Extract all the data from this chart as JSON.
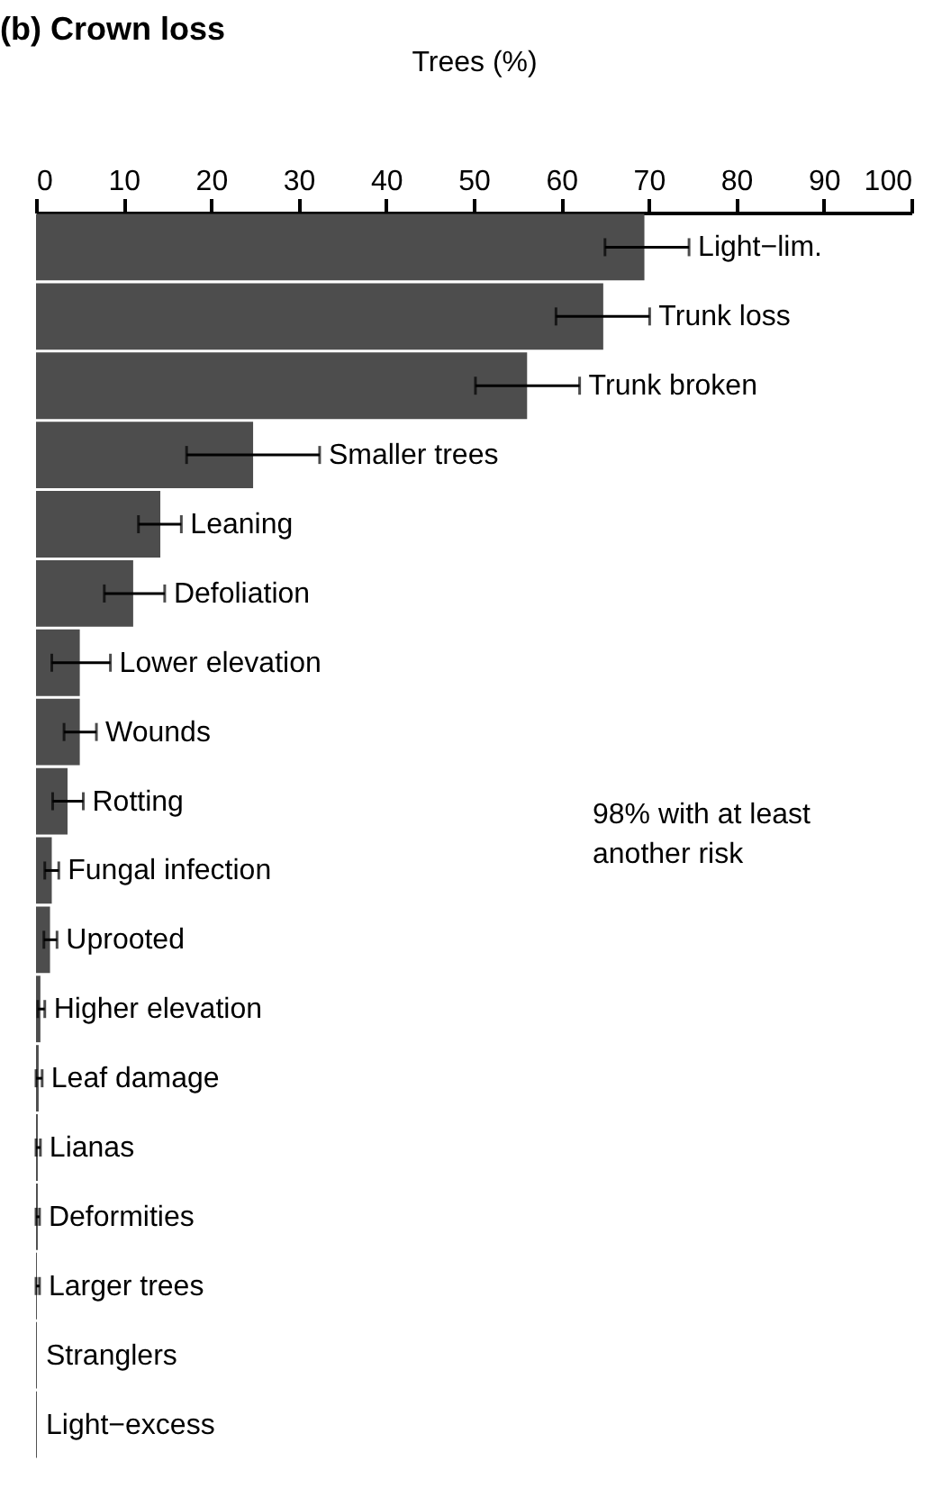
{
  "chart_data": {
    "type": "bar",
    "orientation": "horizontal",
    "title": "(b) Crown loss",
    "xlabel": "Trees (%)",
    "categories": [
      "Light−lim.",
      "Trunk loss",
      "Trunk broken",
      "Smaller trees",
      "Leaning",
      "Defoliation",
      "Lower elevation",
      "Wounds",
      "Rotting",
      "Fungal infection",
      "Uprooted",
      "Higher elevation",
      "Leaf damage",
      "Lianas",
      "Deformities",
      "Larger trees",
      "Stranglers",
      "Light−excess"
    ],
    "values": [
      69.5,
      64.8,
      56.1,
      24.8,
      14.2,
      11.1,
      5.0,
      5.0,
      3.6,
      1.8,
      1.6,
      0.5,
      0.3,
      0.2,
      0.2,
      0.1,
      0.1,
      0.1
    ],
    "errors": [
      [
        65,
        74.6
      ],
      [
        59.4,
        70.1
      ],
      [
        50.2,
        62.1
      ],
      [
        17.2,
        32.4
      ],
      [
        11.7,
        16.6
      ],
      [
        7.8,
        14.7
      ],
      [
        1.8,
        8.5
      ],
      [
        3.2,
        6.9
      ],
      [
        1.9,
        5.4
      ],
      [
        1.0,
        2.6
      ],
      [
        0.9,
        2.4
      ],
      [
        0.2,
        1.0
      ],
      [
        0,
        0.7
      ],
      [
        0,
        0.5
      ],
      [
        0,
        0.4
      ],
      [
        0,
        0.4
      ],
      null,
      null
    ],
    "color": "#4d4d4d",
    "xlim": [
      0,
      100
    ],
    "xticks": [
      0,
      10,
      20,
      30,
      40,
      50,
      60,
      70,
      80,
      90,
      100
    ],
    "tick_labels": "x",
    "grid": false,
    "annotations": [
      "98% with at least another risk"
    ]
  }
}
